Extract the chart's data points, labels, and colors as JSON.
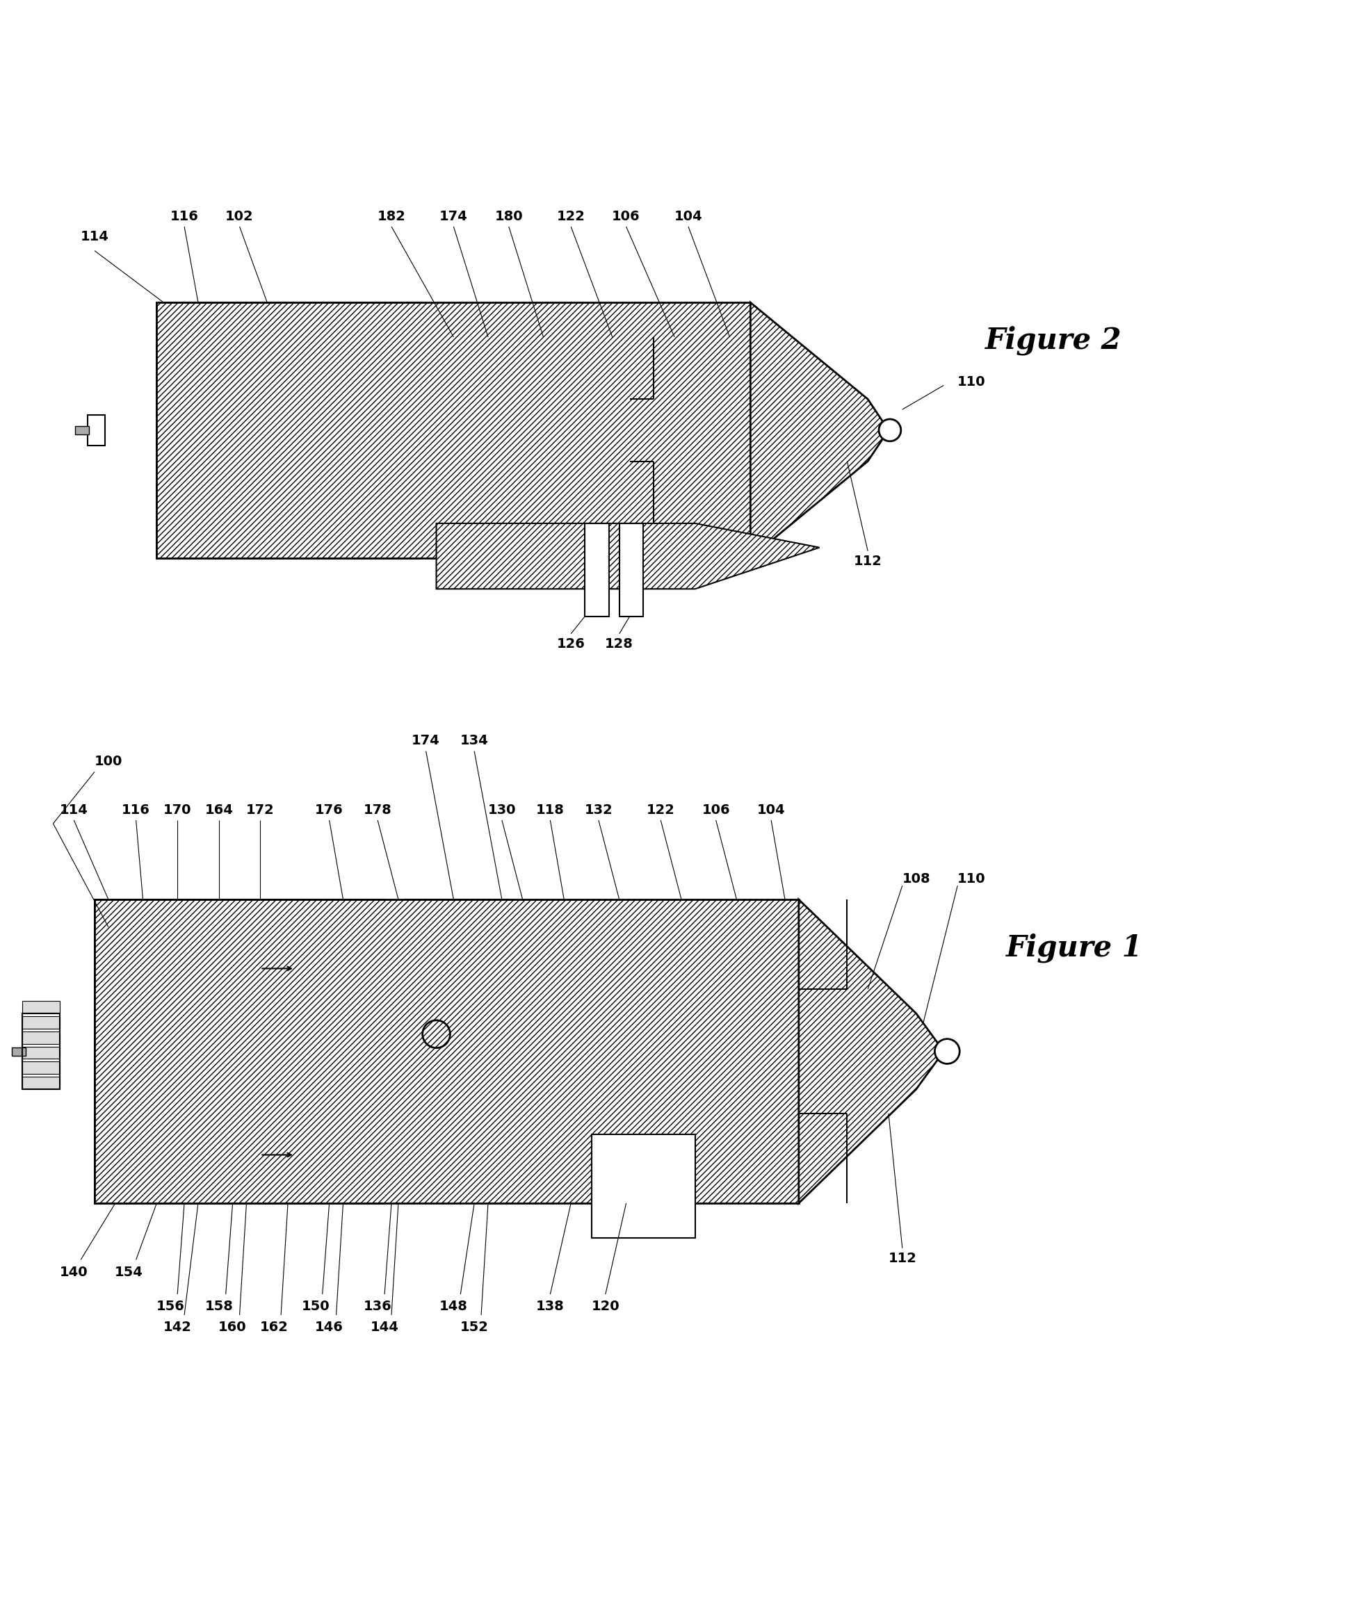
{
  "bg_color": "#ffffff",
  "fig_width": 19.69,
  "fig_height": 23.35,
  "figure2_label": "Figure 2",
  "figure1_label": "Figure 1",
  "ref_fontsize": 14,
  "label_fontsize": 30
}
